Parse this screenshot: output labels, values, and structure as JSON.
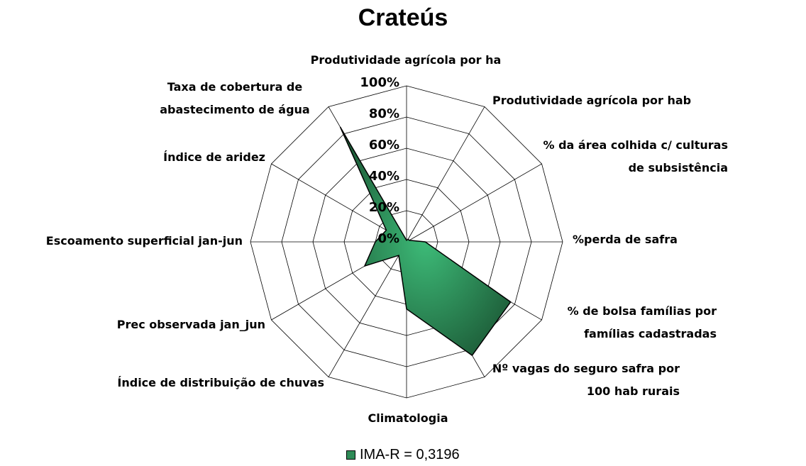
{
  "chart_data": {
    "type": "radar",
    "title": "Crateús",
    "categories": [
      "Produtividade agrícola por ha",
      "Produtividade agrícola por hab",
      "% da área colhida c/ culturas de subsistência",
      "%perda de safra",
      "% de bolsa famílias por famílias cadastradas",
      "Nº vagas do seguro safra por 100 hab rurais",
      "Climatologia",
      "Índice de distribuição de chuvas",
      "Prec observada  jan_jun",
      "Escoamento superficial jan-jun",
      "Índice de aridez",
      "Taxa de cobertura de abastecimento de água"
    ],
    "series": [
      {
        "name": "IMA-R = 0,3196",
        "color": "#2e8b57",
        "values": [
          1,
          2,
          2,
          12,
          77,
          84,
          43,
          10,
          31,
          20,
          15,
          85
        ]
      }
    ],
    "ylim": [
      0,
      100
    ],
    "yticks": [
      {
        "value": 0,
        "label": "0%"
      },
      {
        "value": 20,
        "label": "20%"
      },
      {
        "value": 40,
        "label": "40%"
      },
      {
        "value": 60,
        "label": "60%"
      },
      {
        "value": 80,
        "label": "80%"
      },
      {
        "value": 100,
        "label": "100%"
      }
    ],
    "grid": true
  }
}
